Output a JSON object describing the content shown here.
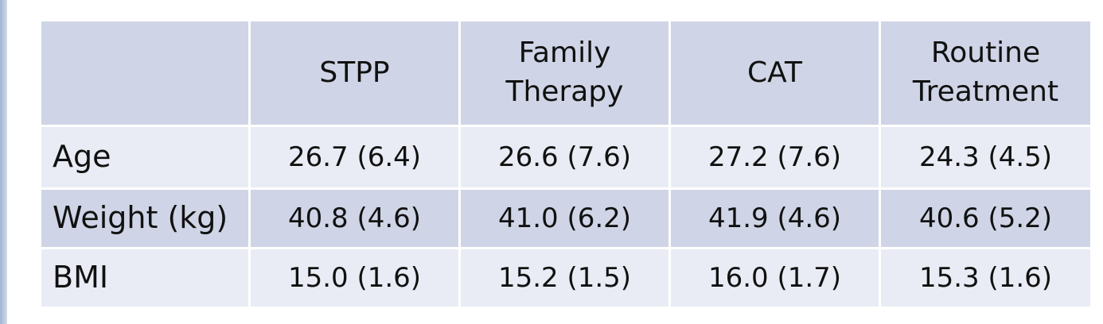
{
  "table": {
    "headers": [
      "",
      "STPP",
      "Family\nTherapy",
      "CAT",
      "Routine\nTreatment"
    ],
    "rows": [
      {
        "label": "Age",
        "cells": [
          "26.7 (6.4)",
          "26.6 (7.6)",
          "27.2 (7.6)",
          "24.3 (4.5)"
        ]
      },
      {
        "label": "Weight (kg)",
        "cells": [
          "40.8 (4.6)",
          "41.0 (6.2)",
          "41.9 (4.6)",
          "40.6 (5.2)"
        ]
      },
      {
        "label": "BMI",
        "cells": [
          "15.0 (1.6)",
          "15.2 (1.5)",
          "16.0 (1.7)",
          "15.3 (1.6)"
        ]
      }
    ]
  },
  "colors": {
    "header_bg": "#cfd5e6",
    "row_light_bg": "#e9ecf4",
    "row_dark_bg": "#cfd5e6",
    "accent": "#9fb3d1"
  }
}
